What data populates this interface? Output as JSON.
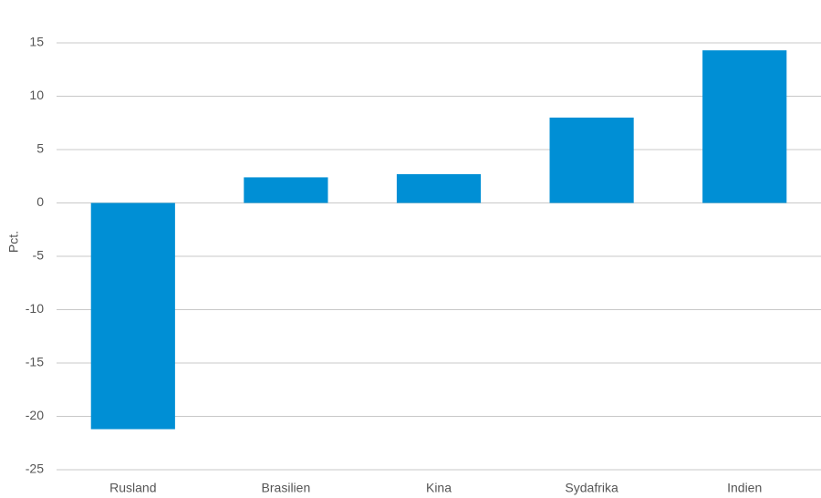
{
  "chart_data": {
    "type": "bar",
    "y_label": "Pct.",
    "categories": [
      "Rusland",
      "Brasilien",
      "Kina",
      "Sydafrika",
      "Indien"
    ],
    "values": [
      -21.2,
      2.4,
      2.7,
      8.0,
      14.3
    ],
    "color": "#008fd5",
    "ylim": [
      -25,
      15
    ],
    "yticks": [
      -25,
      -20,
      -15,
      -10,
      -5,
      0,
      5,
      10,
      15
    ],
    "grid": true
  }
}
